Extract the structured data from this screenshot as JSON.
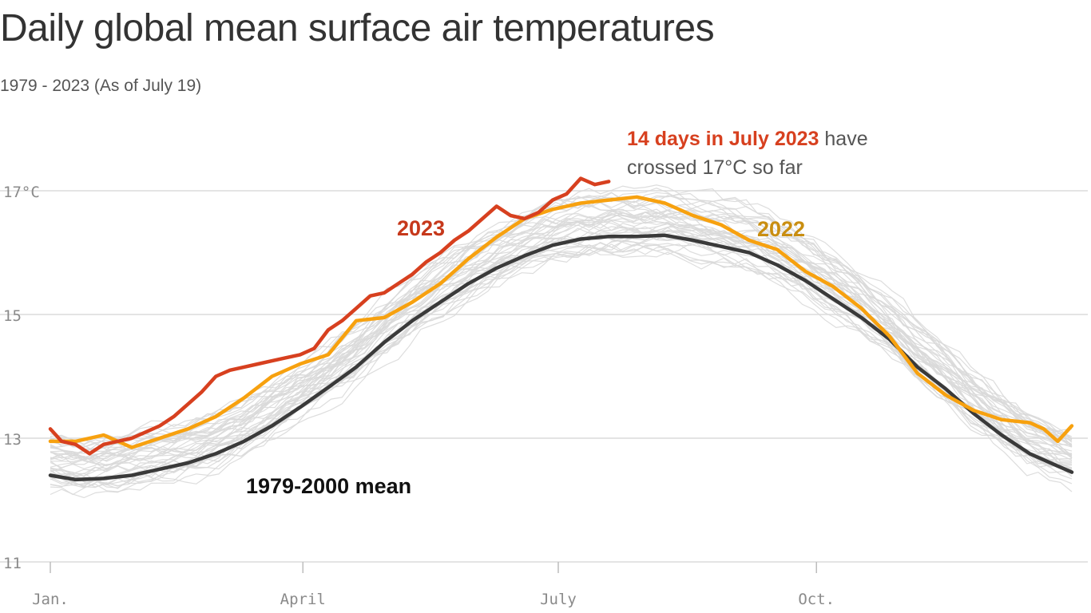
{
  "title": "Daily global mean surface air temperatures",
  "subtitle": "1979 - 2023 (As of July 19)",
  "chart_data": {
    "type": "line",
    "x_unit": "day of year",
    "xlim": [
      1,
      365
    ],
    "ylim": [
      11,
      17
    ],
    "y_ticks": [
      {
        "value": 11,
        "label": "11"
      },
      {
        "value": 13,
        "label": "13"
      },
      {
        "value": 15,
        "label": "15"
      },
      {
        "value": 17,
        "label": "17°C"
      }
    ],
    "x_ticks": [
      {
        "value": 1,
        "label": "Jan."
      },
      {
        "value": 91,
        "label": "April"
      },
      {
        "value": 182,
        "label": "July"
      },
      {
        "value": 274,
        "label": "Oct."
      }
    ],
    "grid": true,
    "colors": {
      "y2023": "#d7401f",
      "y2022": "#f7a10f",
      "mean": "#3a3a3a",
      "background_years": "#d9d9d9",
      "label2022": "#c98e11",
      "label2023": "#c6381b"
    },
    "series": [
      {
        "name": "1979-2000 mean",
        "x": [
          1,
          10,
          20,
          30,
          40,
          50,
          60,
          70,
          80,
          90,
          100,
          110,
          120,
          130,
          140,
          150,
          160,
          170,
          180,
          190,
          200,
          210,
          220,
          230,
          240,
          250,
          260,
          270,
          280,
          290,
          300,
          310,
          320,
          330,
          340,
          350,
          360,
          365
        ],
        "y": [
          12.4,
          12.33,
          12.35,
          12.4,
          12.5,
          12.6,
          12.75,
          12.95,
          13.2,
          13.5,
          13.82,
          14.15,
          14.55,
          14.9,
          15.2,
          15.5,
          15.75,
          15.95,
          16.12,
          16.22,
          16.26,
          16.26,
          16.28,
          16.2,
          16.1,
          16.0,
          15.8,
          15.55,
          15.25,
          14.95,
          14.6,
          14.15,
          13.8,
          13.4,
          13.05,
          12.75,
          12.55,
          12.45
        ]
      },
      {
        "name": "2022",
        "x": [
          1,
          10,
          20,
          30,
          40,
          50,
          60,
          70,
          80,
          90,
          100,
          110,
          120,
          130,
          140,
          150,
          160,
          170,
          180,
          190,
          200,
          210,
          220,
          230,
          240,
          250,
          260,
          270,
          280,
          290,
          300,
          310,
          320,
          330,
          340,
          350,
          355,
          360,
          365
        ],
        "y": [
          12.95,
          12.95,
          13.05,
          12.85,
          13.0,
          13.15,
          13.35,
          13.65,
          14.0,
          14.2,
          14.35,
          14.9,
          14.95,
          15.2,
          15.5,
          15.9,
          16.25,
          16.55,
          16.7,
          16.8,
          16.85,
          16.9,
          16.8,
          16.6,
          16.45,
          16.2,
          16.05,
          15.7,
          15.45,
          15.1,
          14.65,
          14.05,
          13.7,
          13.45,
          13.3,
          13.25,
          13.15,
          12.95,
          13.2
        ]
      },
      {
        "name": "2023",
        "x": [
          1,
          5,
          10,
          15,
          20,
          25,
          30,
          35,
          40,
          45,
          50,
          55,
          60,
          65,
          70,
          75,
          80,
          85,
          90,
          95,
          100,
          105,
          110,
          115,
          120,
          125,
          130,
          135,
          140,
          145,
          150,
          155,
          160,
          165,
          170,
          175,
          180,
          185,
          190,
          195,
          200
        ],
        "y": [
          13.15,
          12.95,
          12.9,
          12.75,
          12.9,
          12.95,
          13.0,
          13.1,
          13.2,
          13.35,
          13.55,
          13.75,
          14.0,
          14.1,
          14.15,
          14.2,
          14.25,
          14.3,
          14.35,
          14.45,
          14.75,
          14.9,
          15.1,
          15.3,
          15.35,
          15.5,
          15.65,
          15.85,
          16.0,
          16.2,
          16.35,
          16.55,
          16.75,
          16.6,
          16.55,
          16.65,
          16.85,
          16.95,
          17.2,
          17.1,
          17.15
        ]
      }
    ],
    "series_labels": {
      "y2023": "2023",
      "y2022": "2022",
      "mean": "1979-2000 mean"
    },
    "annotation": {
      "highlight": "14 days in July 2023",
      "rest_line1": " have",
      "line2": "crossed 17°C so far"
    }
  }
}
